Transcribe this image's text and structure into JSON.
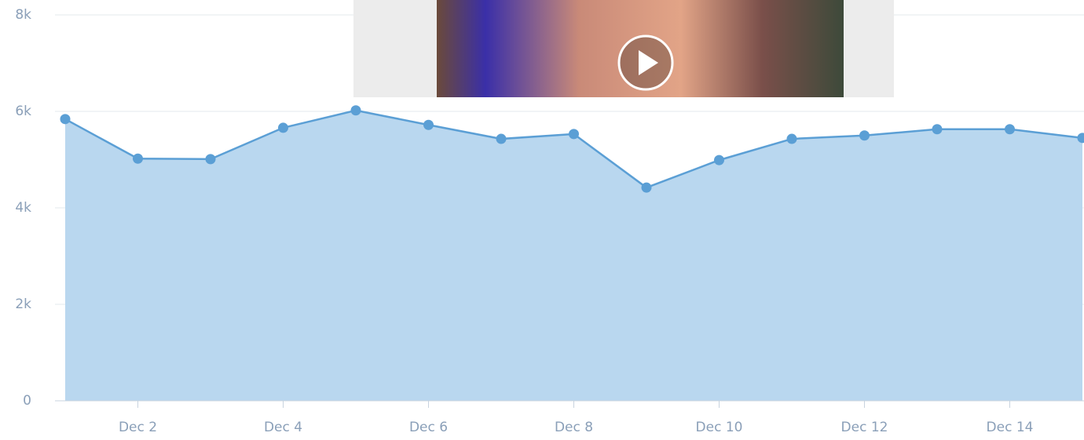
{
  "chart_data": {
    "type": "area",
    "categories": [
      null,
      "Dec 2",
      null,
      "Dec 4",
      null,
      "Dec 6",
      null,
      "Dec 8",
      null,
      "Dec 10",
      null,
      "Dec 12",
      null,
      "Dec 14",
      null
    ],
    "values": [
      5840,
      5020,
      5010,
      5660,
      6020,
      5720,
      5430,
      5530,
      4420,
      4990,
      5430,
      5500,
      5630,
      5630,
      5450
    ],
    "color": "#5b9fd5",
    "fill": "#b9d7ef",
    "ylim": [
      0,
      8000
    ],
    "yticks": [
      0,
      {
        "value": 2000,
        "label": "2k"
      },
      {
        "value": 4000,
        "label": "4k"
      },
      {
        "value": 6000,
        "label": "6k"
      },
      {
        "value": 8000,
        "label": "8k"
      }
    ],
    "grid": true
  }
}
